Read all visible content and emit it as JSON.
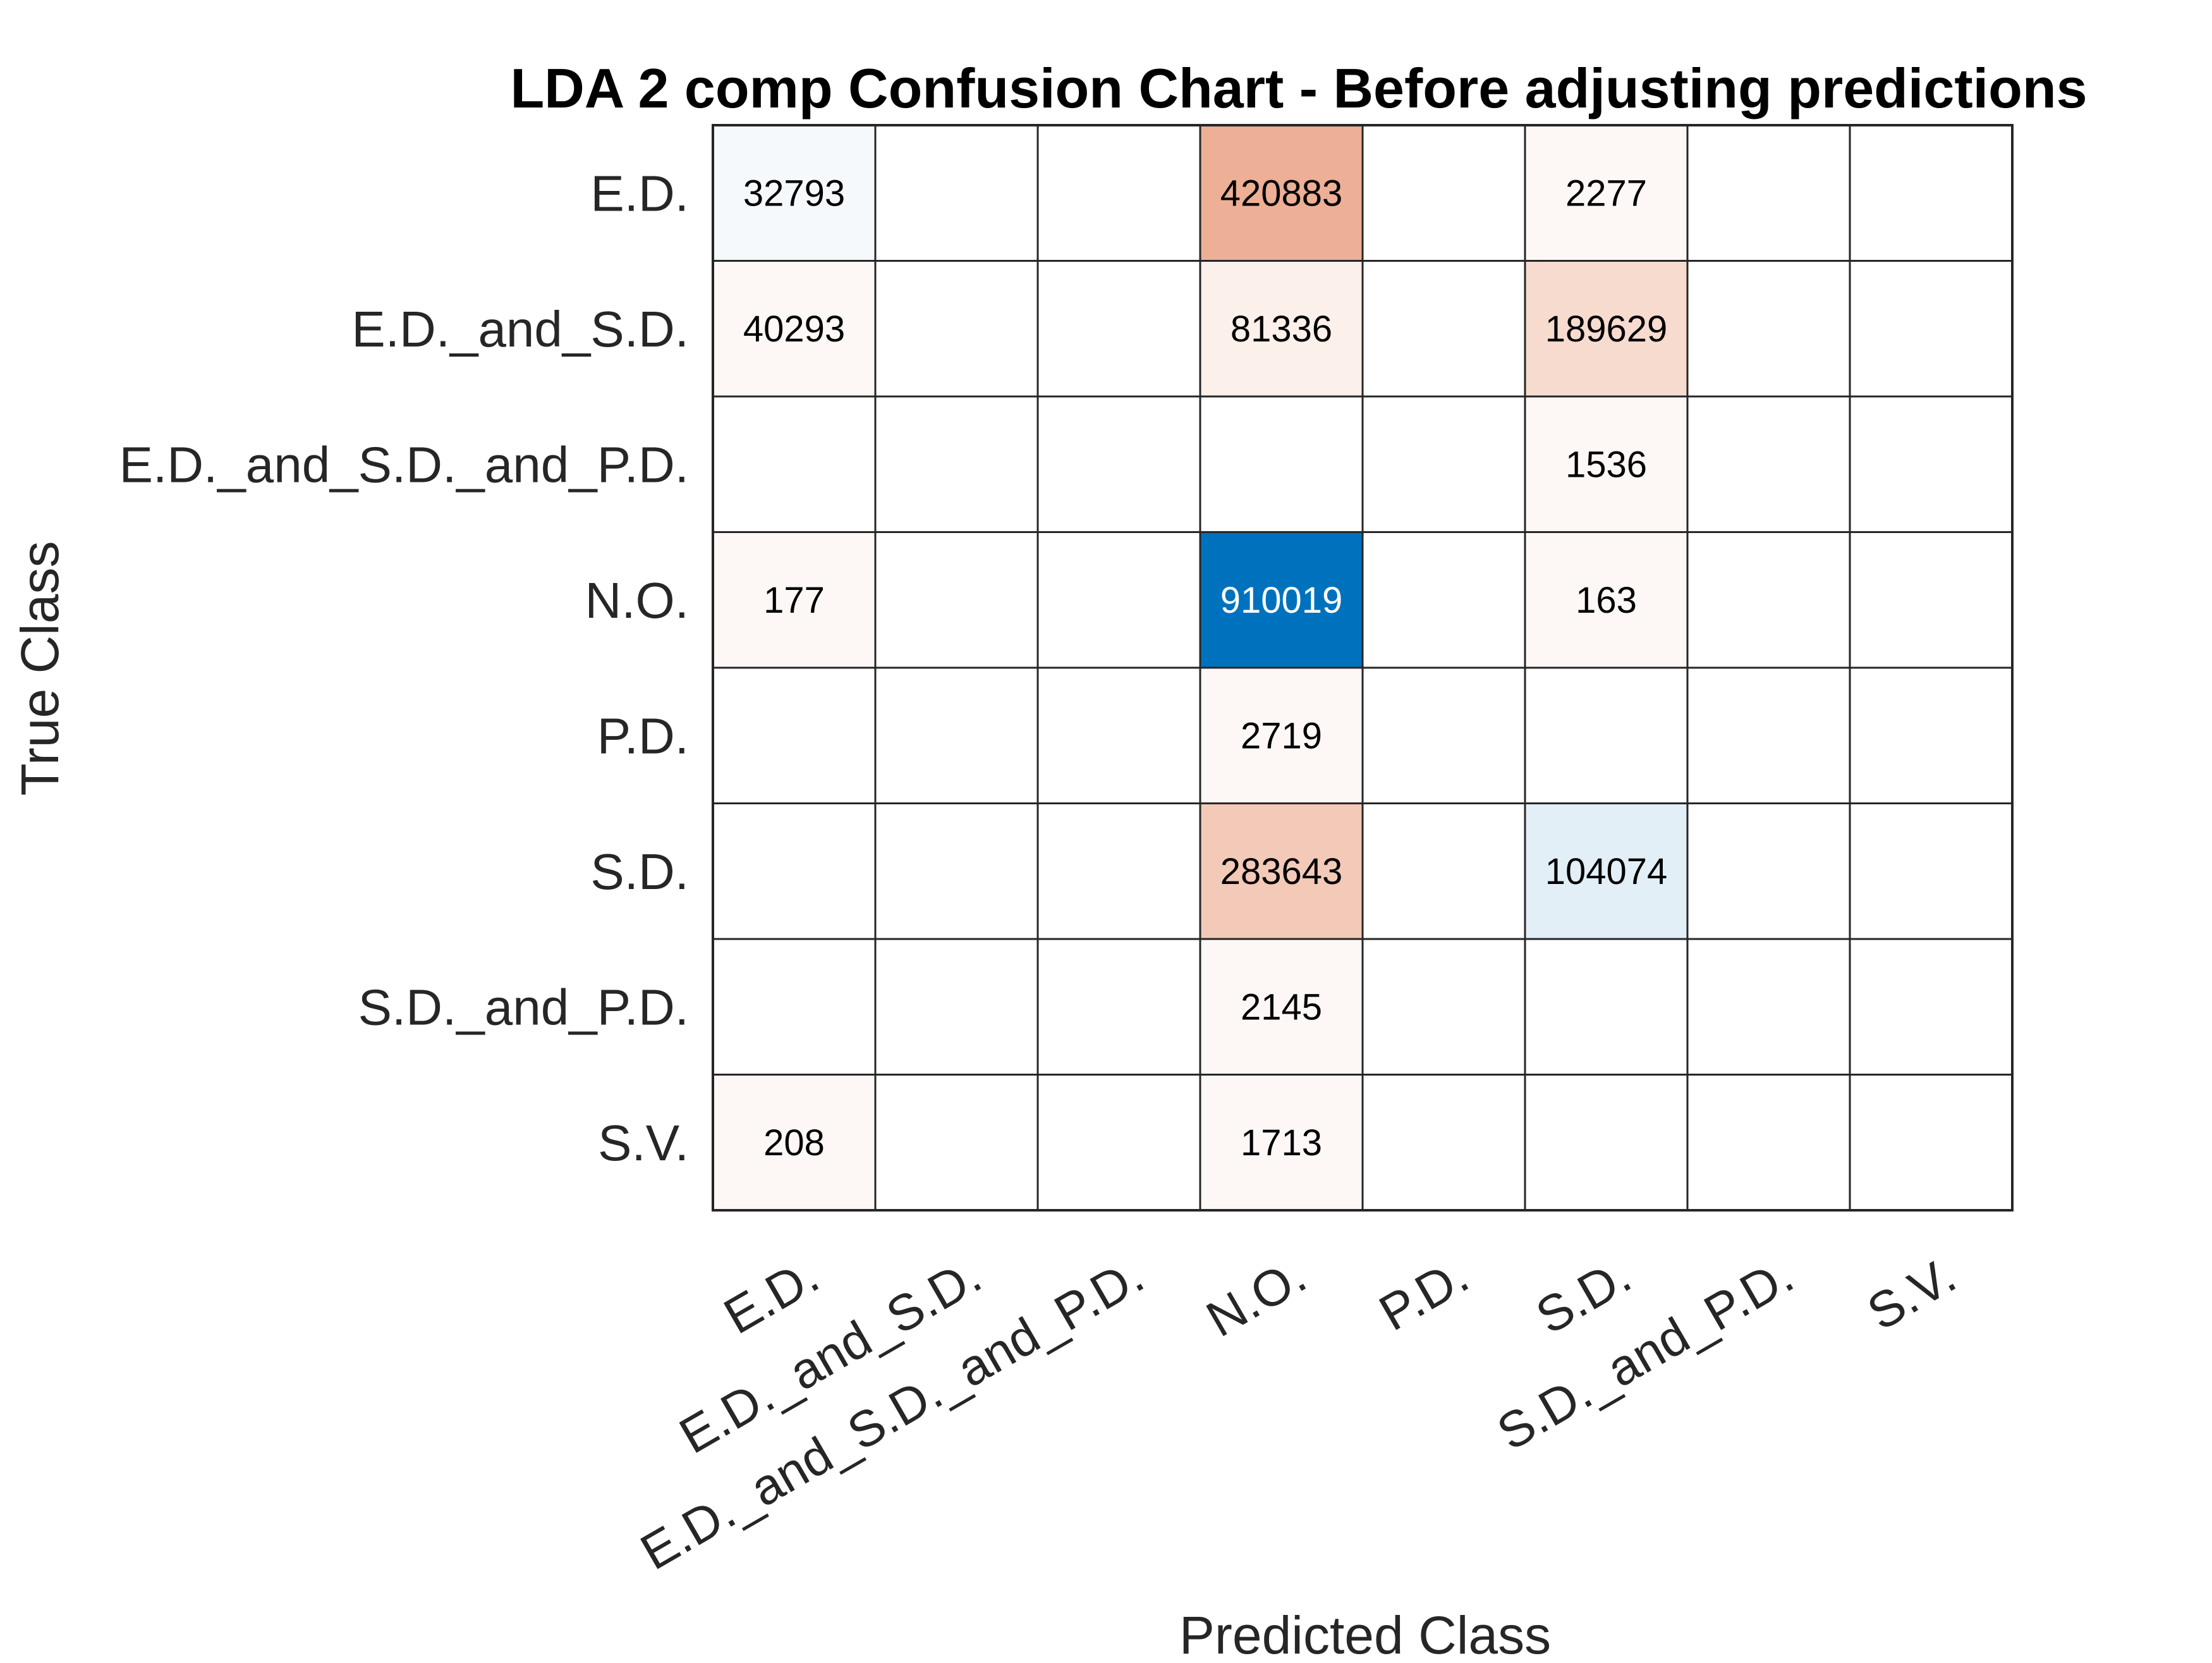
{
  "chart_data": {
    "type": "heatmap",
    "title": "LDA 2 comp Confusion Chart - Before adjusting predictions",
    "xlabel": "Predicted Class",
    "ylabel": "True Class",
    "classes": [
      "E.D.",
      "E.D._and_S.D.",
      "E.D._and_S.D._and_P.D.",
      "N.O.",
      "P.D.",
      "S.D.",
      "S.D._and_P.D.",
      "S.V."
    ],
    "matrix": [
      [
        32793,
        0,
        0,
        420883,
        0,
        2277,
        0,
        0
      ],
      [
        40293,
        0,
        0,
        81336,
        0,
        189629,
        0,
        0
      ],
      [
        0,
        0,
        0,
        0,
        0,
        1536,
        0,
        0
      ],
      [
        177,
        0,
        0,
        910019,
        0,
        163,
        0,
        0
      ],
      [
        0,
        0,
        0,
        2719,
        0,
        0,
        0,
        0
      ],
      [
        0,
        0,
        0,
        283643,
        0,
        104074,
        0,
        0
      ],
      [
        0,
        0,
        0,
        2145,
        0,
        0,
        0,
        0
      ],
      [
        208,
        0,
        0,
        1713,
        0,
        0,
        0,
        0
      ]
    ],
    "diagonal_color": "#0072bd",
    "off_diagonal_color": "#d95319",
    "grid": true
  }
}
